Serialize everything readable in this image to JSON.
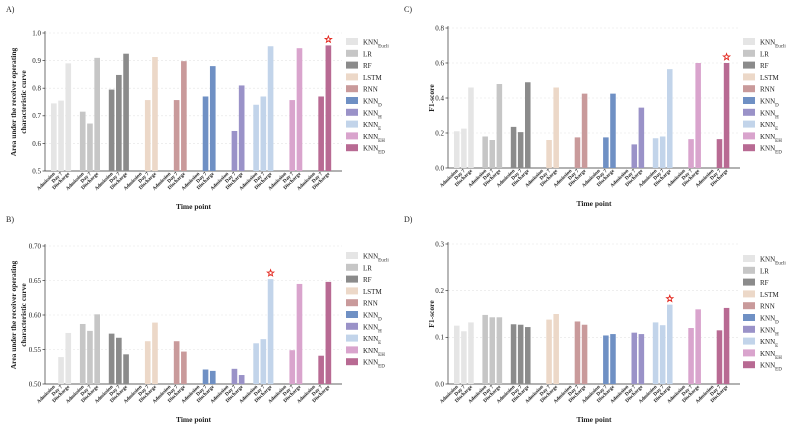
{
  "figure": {
    "colors": {
      "KNN_Eucli": "#e5e5e5",
      "LR": "#c6c6c6",
      "RF": "#8b8b8b",
      "LSTM": "#ecd8c8",
      "RNN": "#c99a9b",
      "KNN_D": "#6f90c4",
      "KNN_H": "#9a92c8",
      "KNN_E": "#c2d4ea",
      "KNN_EH": "#d9a4cd",
      "KNN_ED": "#b86a93"
    },
    "star_color": "#e2231a"
  },
  "chart_data": [
    {
      "panel": "A)",
      "type": "bar",
      "ylabel_lines": [
        "Area under the receiver operating",
        "characteristic curve"
      ],
      "xlabel": "Time point",
      "ylim": [
        0.5,
        1.0
      ],
      "yticks": [
        "0.5",
        "0.6",
        "0.7",
        "0.8",
        "0.9",
        "1.0"
      ],
      "categories": [
        "Admission",
        "Day 7",
        "Discharge"
      ],
      "series": [
        {
          "name": "KNN",
          "sub": "Eucli",
          "key": "KNN_Eucli",
          "values": [
            0.745,
            0.755,
            0.89
          ]
        },
        {
          "name": "LR",
          "sub": "",
          "key": "LR",
          "values": [
            0.715,
            0.672,
            0.91
          ]
        },
        {
          "name": "RF",
          "sub": "",
          "key": "RF",
          "values": [
            0.795,
            0.848,
            0.925
          ]
        },
        {
          "name": "LSTM",
          "sub": "",
          "key": "LSTM",
          "values": [
            null,
            0.757,
            0.913
          ]
        },
        {
          "name": "RNN",
          "sub": "",
          "key": "RNN",
          "values": [
            null,
            0.757,
            0.898
          ]
        },
        {
          "name": "KNN",
          "sub": "D",
          "key": "KNN_D",
          "values": [
            null,
            0.77,
            0.88
          ]
        },
        {
          "name": "KNN",
          "sub": "H",
          "key": "KNN_H",
          "values": [
            null,
            0.645,
            0.81
          ]
        },
        {
          "name": "KNN",
          "sub": "E",
          "key": "KNN_E",
          "values": [
            0.74,
            0.77,
            0.952
          ]
        },
        {
          "name": "KNN",
          "sub": "EH",
          "key": "KNN_EH",
          "values": [
            null,
            0.757,
            0.945
          ]
        },
        {
          "name": "KNN",
          "sub": "ED",
          "key": "KNN_ED",
          "values": [
            null,
            0.77,
            0.955
          ]
        }
      ],
      "star": {
        "series": 9,
        "category": 2
      }
    },
    {
      "panel": "B)",
      "type": "bar",
      "ylabel_lines": [
        "Area under the receiver operating",
        "characteristic curve"
      ],
      "xlabel": "Time point",
      "ylim": [
        0.5,
        0.7
      ],
      "yticks": [
        "0.50",
        "0.55",
        "0.60",
        "0.65",
        "0.70"
      ],
      "categories": [
        "Admission",
        "Day 7",
        "Discharge"
      ],
      "series": [
        {
          "name": "KNN",
          "sub": "Eucli",
          "key": "KNN_Eucli",
          "values": [
            null,
            0.539,
            0.574
          ]
        },
        {
          "name": "LR",
          "sub": "",
          "key": "LR",
          "values": [
            0.587,
            0.577,
            0.601
          ]
        },
        {
          "name": "RF",
          "sub": "",
          "key": "RF",
          "values": [
            0.573,
            0.567,
            0.543
          ]
        },
        {
          "name": "LSTM",
          "sub": "",
          "key": "LSTM",
          "values": [
            null,
            0.562,
            0.589
          ]
        },
        {
          "name": "RNN",
          "sub": "",
          "key": "RNN",
          "values": [
            null,
            0.562,
            0.547
          ]
        },
        {
          "name": "KNN",
          "sub": "D",
          "key": "KNN_D",
          "values": [
            null,
            0.521,
            0.519
          ]
        },
        {
          "name": "KNN",
          "sub": "H",
          "key": "KNN_H",
          "values": [
            null,
            0.522,
            0.513
          ]
        },
        {
          "name": "KNN",
          "sub": "E",
          "key": "KNN_E",
          "values": [
            0.559,
            0.565,
            0.652
          ]
        },
        {
          "name": "KNN",
          "sub": "EH",
          "key": "KNN_EH",
          "values": [
            null,
            0.549,
            0.645
          ]
        },
        {
          "name": "KNN",
          "sub": "ED",
          "key": "KNN_ED",
          "values": [
            null,
            0.541,
            0.648
          ]
        }
      ],
      "star": {
        "series": 7,
        "category": 2
      }
    },
    {
      "panel": "C)",
      "type": "bar",
      "ylabel_lines": [
        "F1-score"
      ],
      "xlabel": "Time point",
      "ylim": [
        0,
        0.8
      ],
      "yticks": [
        "0.0",
        "0.2",
        "0.4",
        "0.6",
        "0.8"
      ],
      "categories": [
        "Admission",
        "Day 7",
        "Discharge"
      ],
      "series": [
        {
          "name": "KNN",
          "sub": "Eucli",
          "key": "KNN_Eucli",
          "values": [
            0.21,
            0.225,
            0.46
          ]
        },
        {
          "name": "LR",
          "sub": "",
          "key": "LR",
          "values": [
            0.18,
            0.16,
            0.48
          ]
        },
        {
          "name": "RF",
          "sub": "",
          "key": "RF",
          "values": [
            0.235,
            0.205,
            0.49
          ]
        },
        {
          "name": "LSTM",
          "sub": "",
          "key": "LSTM",
          "values": [
            null,
            0.16,
            0.46
          ]
        },
        {
          "name": "RNN",
          "sub": "",
          "key": "RNN",
          "values": [
            null,
            0.175,
            0.425
          ]
        },
        {
          "name": "KNN",
          "sub": "D",
          "key": "KNN_D",
          "values": [
            null,
            0.175,
            0.425
          ]
        },
        {
          "name": "KNN",
          "sub": "H",
          "key": "KNN_H",
          "values": [
            null,
            0.135,
            0.345
          ]
        },
        {
          "name": "KNN",
          "sub": "E",
          "key": "KNN_E",
          "values": [
            0.17,
            0.18,
            0.565
          ]
        },
        {
          "name": "KNN",
          "sub": "EH",
          "key": "KNN_EH",
          "values": [
            null,
            0.165,
            0.6
          ]
        },
        {
          "name": "KNN",
          "sub": "ED",
          "key": "KNN_ED",
          "values": [
            null,
            0.165,
            0.6
          ]
        }
      ],
      "star": {
        "series": 9,
        "category": 2
      }
    },
    {
      "panel": "D)",
      "type": "bar",
      "ylabel_lines": [
        "F1-score"
      ],
      "xlabel": "Time point",
      "ylim": [
        0,
        0.3
      ],
      "yticks": [
        "0.0",
        "0.1",
        "0.2",
        "0.3"
      ],
      "categories": [
        "Admission",
        "Day 7",
        "Discharge"
      ],
      "series": [
        {
          "name": "KNN",
          "sub": "Eucli",
          "key": "KNN_Eucli",
          "values": [
            0.125,
            0.113,
            0.132
          ]
        },
        {
          "name": "LR",
          "sub": "",
          "key": "LR",
          "values": [
            0.148,
            0.143,
            0.143
          ]
        },
        {
          "name": "RF",
          "sub": "",
          "key": "RF",
          "values": [
            0.128,
            0.127,
            0.122
          ]
        },
        {
          "name": "LSTM",
          "sub": "",
          "key": "LSTM",
          "values": [
            null,
            0.138,
            0.15
          ]
        },
        {
          "name": "RNN",
          "sub": "",
          "key": "RNN",
          "values": [
            null,
            0.134,
            0.127
          ]
        },
        {
          "name": "KNN",
          "sub": "D",
          "key": "KNN_D",
          "values": [
            null,
            0.104,
            0.107
          ]
        },
        {
          "name": "KNN",
          "sub": "H",
          "key": "KNN_H",
          "values": [
            null,
            0.11,
            0.107
          ]
        },
        {
          "name": "KNN",
          "sub": "E",
          "key": "KNN_E",
          "values": [
            0.132,
            0.126,
            0.17
          ]
        },
        {
          "name": "KNN",
          "sub": "EH",
          "key": "KNN_EH",
          "values": [
            null,
            0.12,
            0.16
          ]
        },
        {
          "name": "KNN",
          "sub": "ED",
          "key": "KNN_ED",
          "values": [
            null,
            0.115,
            0.163
          ]
        }
      ],
      "star": {
        "series": 7,
        "category": 2
      }
    }
  ]
}
